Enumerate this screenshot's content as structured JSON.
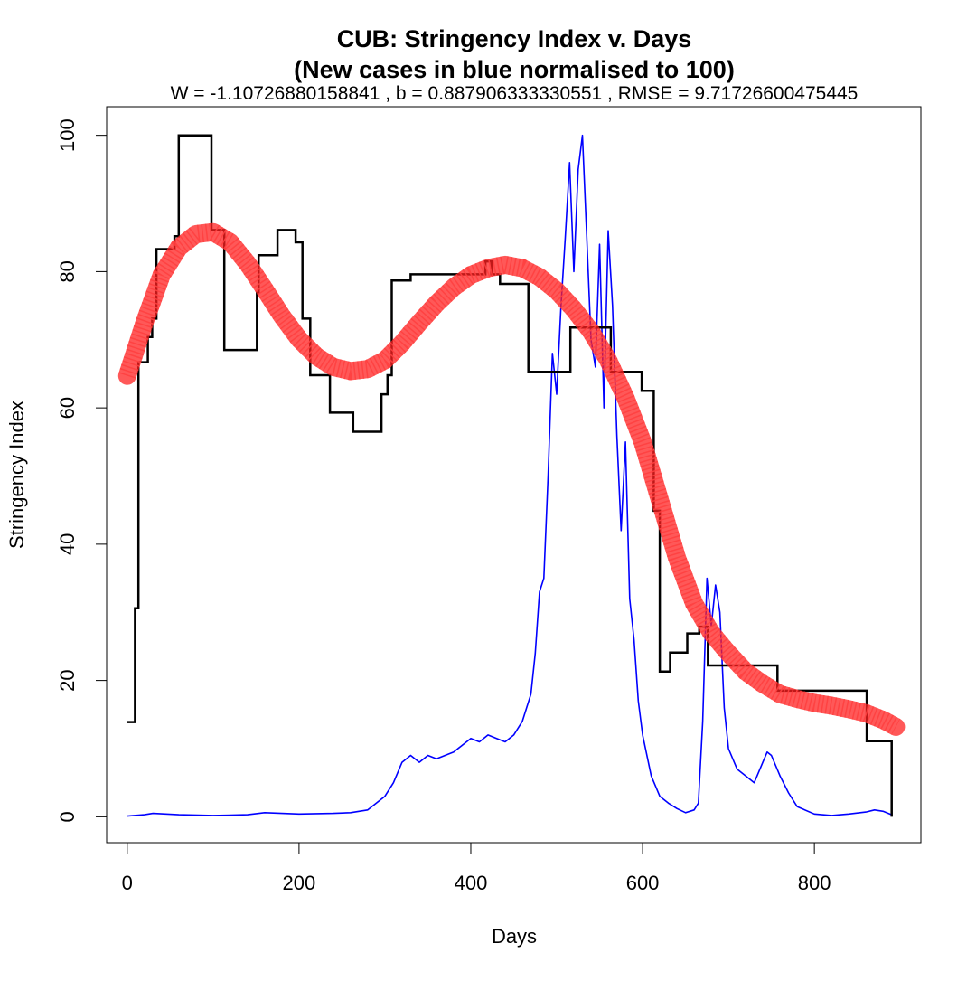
{
  "chart_data": {
    "type": "line",
    "title": "CUB: Stringency Index v. Days",
    "title_line2": "(New cases in blue normalised to 100)",
    "subtitle": "W = -1.10726880158841 , b = 0.887906333330551 , RMSE = 9.71726600475445",
    "xlabel": "Days",
    "ylabel": "Stringency Index",
    "xlim": [
      -24,
      924
    ],
    "ylim": [
      -3.8,
      104.2
    ],
    "x_ticks": [
      0,
      200,
      400,
      600,
      800
    ],
    "y_ticks": [
      0,
      20,
      40,
      60,
      80,
      100
    ],
    "x_tick_labels": [
      "0",
      "200",
      "400",
      "600",
      "800"
    ],
    "y_tick_labels": [
      "0",
      "20",
      "40",
      "60",
      "80",
      "100"
    ],
    "grid": false,
    "legend": "none",
    "series": [
      {
        "style": "step",
        "color": "#000000",
        "points": [
          [
            0,
            13.9
          ],
          [
            9,
            13.9
          ],
          [
            9,
            30.6
          ],
          [
            13,
            30.6
          ],
          [
            13,
            66.7
          ],
          [
            24,
            66.7
          ],
          [
            24,
            70.4
          ],
          [
            29,
            70.4
          ],
          [
            29,
            73.1
          ],
          [
            34,
            73.1
          ],
          [
            34,
            83.3
          ],
          [
            55,
            83.3
          ],
          [
            55,
            85.2
          ],
          [
            60,
            85.2
          ],
          [
            60,
            100
          ],
          [
            98,
            100
          ],
          [
            98,
            86.1
          ],
          [
            113,
            86.1
          ],
          [
            113,
            68.5
          ],
          [
            151,
            68.5
          ],
          [
            151,
            76.9
          ],
          [
            153,
            76.9
          ],
          [
            153,
            82.4
          ],
          [
            175,
            82.4
          ],
          [
            175,
            86.1
          ],
          [
            196,
            86.1
          ],
          [
            196,
            84.3
          ],
          [
            204,
            84.3
          ],
          [
            204,
            73.1
          ],
          [
            213,
            73.1
          ],
          [
            213,
            64.8
          ],
          [
            236,
            64.8
          ],
          [
            236,
            59.3
          ],
          [
            263,
            59.3
          ],
          [
            263,
            56.5
          ],
          [
            296,
            56.5
          ],
          [
            296,
            62
          ],
          [
            303,
            62
          ],
          [
            303,
            64.8
          ],
          [
            308,
            64.8
          ],
          [
            308,
            78.7
          ],
          [
            330,
            78.7
          ],
          [
            330,
            79.6
          ],
          [
            417,
            79.6
          ],
          [
            417,
            81.5
          ],
          [
            424,
            81.5
          ],
          [
            424,
            79.6
          ],
          [
            434,
            79.6
          ],
          [
            434,
            78.2
          ],
          [
            467,
            78.2
          ],
          [
            467,
            65.3
          ],
          [
            516,
            65.3
          ],
          [
            516,
            71.8
          ],
          [
            563,
            71.8
          ],
          [
            563,
            65.3
          ],
          [
            599,
            65.3
          ],
          [
            599,
            62.5
          ],
          [
            613,
            62.5
          ],
          [
            613,
            44.9
          ],
          [
            620,
            44.9
          ],
          [
            620,
            21.3
          ],
          [
            632,
            21.3
          ],
          [
            632,
            24.1
          ],
          [
            652,
            24.1
          ],
          [
            652,
            26.9
          ],
          [
            666,
            26.9
          ],
          [
            666,
            27.9
          ],
          [
            676,
            27.9
          ],
          [
            676,
            22.2
          ],
          [
            757,
            22.2
          ],
          [
            757,
            18.5
          ],
          [
            861,
            18.5
          ],
          [
            861,
            11.1
          ],
          [
            890,
            11.1
          ],
          [
            890,
            0
          ]
        ]
      },
      {
        "style": "fit",
        "color": "#ff2020",
        "points": [
          [
            0,
            64.7
          ],
          [
            20,
            72.5
          ],
          [
            40,
            79.5
          ],
          [
            60,
            83.5
          ],
          [
            80,
            85.5
          ],
          [
            100,
            85.8
          ],
          [
            120,
            84.3
          ],
          [
            140,
            81.2
          ],
          [
            160,
            77.4
          ],
          [
            180,
            73.5
          ],
          [
            200,
            70.1
          ],
          [
            220,
            67.6
          ],
          [
            240,
            66
          ],
          [
            260,
            65.4
          ],
          [
            280,
            65.7
          ],
          [
            300,
            67
          ],
          [
            320,
            69.5
          ],
          [
            340,
            72.5
          ],
          [
            360,
            75.3
          ],
          [
            380,
            77.7
          ],
          [
            400,
            79.5
          ],
          [
            420,
            80.5
          ],
          [
            440,
            81
          ],
          [
            460,
            80.5
          ],
          [
            480,
            79.2
          ],
          [
            500,
            77.2
          ],
          [
            520,
            74.5
          ],
          [
            540,
            71.2
          ],
          [
            560,
            67
          ],
          [
            580,
            61.5
          ],
          [
            600,
            55
          ],
          [
            620,
            46.5
          ],
          [
            640,
            38
          ],
          [
            660,
            31.3
          ],
          [
            680,
            27
          ],
          [
            700,
            24
          ],
          [
            720,
            21.3
          ],
          [
            740,
            19.5
          ],
          [
            760,
            18
          ],
          [
            780,
            17.3
          ],
          [
            800,
            16.7
          ],
          [
            820,
            16.3
          ],
          [
            840,
            15.8
          ],
          [
            860,
            15.2
          ],
          [
            880,
            14.2
          ],
          [
            895,
            13.2
          ]
        ]
      },
      {
        "style": "line",
        "color": "#0000ff",
        "points": [
          [
            0,
            0.1
          ],
          [
            20,
            0.3
          ],
          [
            30,
            0.5
          ],
          [
            60,
            0.3
          ],
          [
            100,
            0.2
          ],
          [
            140,
            0.3
          ],
          [
            160,
            0.6
          ],
          [
            200,
            0.4
          ],
          [
            240,
            0.5
          ],
          [
            260,
            0.6
          ],
          [
            280,
            1
          ],
          [
            300,
            3
          ],
          [
            310,
            5
          ],
          [
            320,
            8
          ],
          [
            330,
            9
          ],
          [
            340,
            8
          ],
          [
            350,
            9
          ],
          [
            360,
            8.5
          ],
          [
            370,
            9
          ],
          [
            380,
            9.5
          ],
          [
            390,
            10.5
          ],
          [
            400,
            11.5
          ],
          [
            410,
            11
          ],
          [
            420,
            12
          ],
          [
            430,
            11.5
          ],
          [
            440,
            11
          ],
          [
            450,
            12
          ],
          [
            460,
            14
          ],
          [
            470,
            18
          ],
          [
            475,
            24
          ],
          [
            480,
            33
          ],
          [
            485,
            35
          ],
          [
            490,
            50
          ],
          [
            495,
            68
          ],
          [
            500,
            62
          ],
          [
            505,
            75
          ],
          [
            510,
            85
          ],
          [
            515,
            96
          ],
          [
            520,
            80
          ],
          [
            525,
            95
          ],
          [
            530,
            100
          ],
          [
            535,
            85
          ],
          [
            540,
            70
          ],
          [
            545,
            66
          ],
          [
            550,
            84
          ],
          [
            555,
            60
          ],
          [
            560,
            86
          ],
          [
            565,
            75
          ],
          [
            570,
            56
          ],
          [
            575,
            42
          ],
          [
            580,
            55
          ],
          [
            585,
            32
          ],
          [
            590,
            26
          ],
          [
            595,
            17
          ],
          [
            600,
            12
          ],
          [
            610,
            6
          ],
          [
            620,
            3
          ],
          [
            630,
            2
          ],
          [
            640,
            1.2
          ],
          [
            650,
            0.6
          ],
          [
            660,
            1
          ],
          [
            665,
            2
          ],
          [
            670,
            14
          ],
          [
            675,
            35
          ],
          [
            680,
            28
          ],
          [
            685,
            34
          ],
          [
            690,
            30
          ],
          [
            695,
            16
          ],
          [
            700,
            10
          ],
          [
            710,
            7
          ],
          [
            720,
            6
          ],
          [
            730,
            5
          ],
          [
            740,
            8
          ],
          [
            745,
            9.5
          ],
          [
            750,
            9
          ],
          [
            760,
            6
          ],
          [
            770,
            3.5
          ],
          [
            780,
            1.5
          ],
          [
            800,
            0.4
          ],
          [
            820,
            0.2
          ],
          [
            840,
            0.4
          ],
          [
            860,
            0.7
          ],
          [
            870,
            1
          ],
          [
            880,
            0.8
          ],
          [
            890,
            0.3
          ]
        ]
      }
    ]
  }
}
